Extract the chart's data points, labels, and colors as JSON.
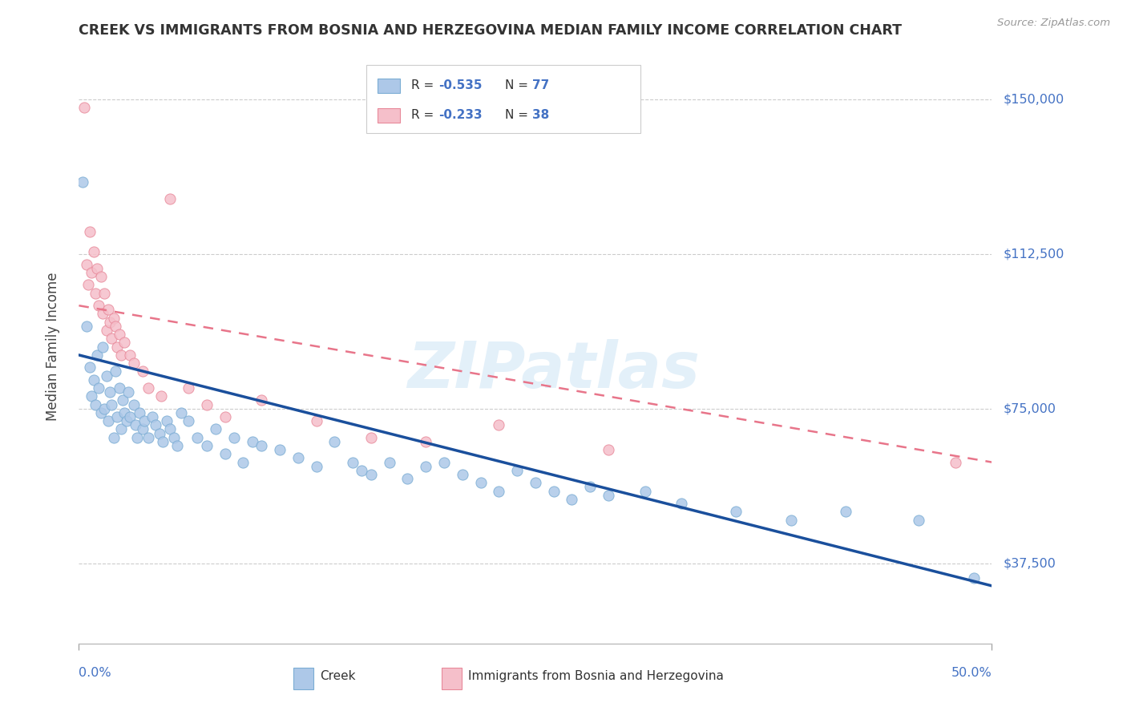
{
  "title": "CREEK VS IMMIGRANTS FROM BOSNIA AND HERZEGOVINA MEDIAN FAMILY INCOME CORRELATION CHART",
  "source": "Source: ZipAtlas.com",
  "ylabel": "Median Family Income",
  "xlim": [
    0.0,
    0.5
  ],
  "ylim": [
    18000,
    162000
  ],
  "yticks": [
    37500,
    75000,
    112500,
    150000
  ],
  "ytick_labels": [
    "$37,500",
    "$75,000",
    "$112,500",
    "$150,000"
  ],
  "xtick_labels": [
    "0.0%",
    "50.0%"
  ],
  "creek_color": "#adc8e8",
  "creek_edge_color": "#7badd4",
  "bosnia_color": "#f5bfca",
  "bosnia_edge_color": "#e8899a",
  "creek_line_color": "#1a4f9c",
  "bosnia_line_color": "#e8758a",
  "watermark": "ZIPatlas",
  "creek_trend_x": [
    0.0,
    0.5
  ],
  "creek_trend_y": [
    88000,
    32000
  ],
  "bosnia_trend_x": [
    0.0,
    0.5
  ],
  "bosnia_trend_y": [
    100000,
    62000
  ],
  "creek_x": [
    0.002,
    0.004,
    0.006,
    0.007,
    0.008,
    0.009,
    0.01,
    0.011,
    0.012,
    0.013,
    0.014,
    0.015,
    0.016,
    0.017,
    0.018,
    0.019,
    0.02,
    0.021,
    0.022,
    0.023,
    0.024,
    0.025,
    0.026,
    0.027,
    0.028,
    0.03,
    0.031,
    0.032,
    0.033,
    0.035,
    0.036,
    0.038,
    0.04,
    0.042,
    0.044,
    0.046,
    0.048,
    0.05,
    0.052,
    0.054,
    0.056,
    0.06,
    0.065,
    0.07,
    0.075,
    0.08,
    0.085,
    0.09,
    0.095,
    0.1,
    0.11,
    0.12,
    0.13,
    0.14,
    0.15,
    0.155,
    0.16,
    0.17,
    0.18,
    0.19,
    0.2,
    0.21,
    0.22,
    0.23,
    0.24,
    0.25,
    0.26,
    0.27,
    0.28,
    0.29,
    0.31,
    0.33,
    0.36,
    0.39,
    0.42,
    0.46,
    0.49
  ],
  "creek_y": [
    130000,
    95000,
    85000,
    78000,
    82000,
    76000,
    88000,
    80000,
    74000,
    90000,
    75000,
    83000,
    72000,
    79000,
    76000,
    68000,
    84000,
    73000,
    80000,
    70000,
    77000,
    74000,
    72000,
    79000,
    73000,
    76000,
    71000,
    68000,
    74000,
    70000,
    72000,
    68000,
    73000,
    71000,
    69000,
    67000,
    72000,
    70000,
    68000,
    66000,
    74000,
    72000,
    68000,
    66000,
    70000,
    64000,
    68000,
    62000,
    67000,
    66000,
    65000,
    63000,
    61000,
    67000,
    62000,
    60000,
    59000,
    62000,
    58000,
    61000,
    62000,
    59000,
    57000,
    55000,
    60000,
    57000,
    55000,
    53000,
    56000,
    54000,
    55000,
    52000,
    50000,
    48000,
    50000,
    48000,
    34000
  ],
  "bosnia_x": [
    0.003,
    0.004,
    0.005,
    0.006,
    0.007,
    0.008,
    0.009,
    0.01,
    0.011,
    0.012,
    0.013,
    0.014,
    0.015,
    0.016,
    0.017,
    0.018,
    0.019,
    0.02,
    0.021,
    0.022,
    0.023,
    0.025,
    0.028,
    0.03,
    0.035,
    0.038,
    0.045,
    0.05,
    0.06,
    0.07,
    0.08,
    0.1,
    0.13,
    0.16,
    0.19,
    0.23,
    0.29,
    0.48
  ],
  "bosnia_y": [
    148000,
    110000,
    105000,
    118000,
    108000,
    113000,
    103000,
    109000,
    100000,
    107000,
    98000,
    103000,
    94000,
    99000,
    96000,
    92000,
    97000,
    95000,
    90000,
    93000,
    88000,
    91000,
    88000,
    86000,
    84000,
    80000,
    78000,
    126000,
    80000,
    76000,
    73000,
    77000,
    72000,
    68000,
    67000,
    71000,
    65000,
    62000
  ]
}
